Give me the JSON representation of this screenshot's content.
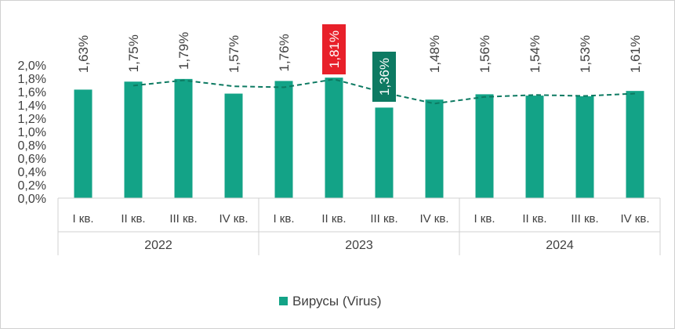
{
  "chart_data": {
    "type": "bar",
    "groups": [
      {
        "label": "2022",
        "categories": [
          "I кв.",
          "II кв.",
          "III кв.",
          "IV кв."
        ]
      },
      {
        "label": "2023",
        "categories": [
          "I кв.",
          "II кв.",
          "III кв.",
          "IV кв."
        ]
      },
      {
        "label": "2024",
        "categories": [
          "I кв.",
          "II кв.",
          "III кв.",
          "IV кв."
        ]
      }
    ],
    "series": [
      {
        "name": "Вирусы (Virus)",
        "values": [
          1.63,
          1.75,
          1.79,
          1.57,
          1.76,
          1.81,
          1.36,
          1.48,
          1.56,
          1.54,
          1.53,
          1.61
        ],
        "labels": [
          "1,63%",
          "1,75%",
          "1,79%",
          "1,57%",
          "1,76%",
          "1,81%",
          "1,36%",
          "1,48%",
          "1,56%",
          "1,54%",
          "1,53%",
          "1,61%"
        ],
        "color": "#13a387"
      }
    ],
    "trendline": {
      "type": "moving-average",
      "style": "dashed",
      "color": "#0d7a62"
    },
    "highlights": [
      {
        "index": 5,
        "color": "#e8202a"
      },
      {
        "index": 6,
        "color": "#0d7a62"
      }
    ],
    "ylim": [
      0,
      2.0
    ],
    "yticks": [
      "0,0%",
      "0,2%",
      "0,4%",
      "0,6%",
      "0,8%",
      "1,0%",
      "1,2%",
      "1,4%",
      "1,6%",
      "1,8%",
      "2,0%"
    ],
    "grid": false,
    "legend": "bottom"
  }
}
